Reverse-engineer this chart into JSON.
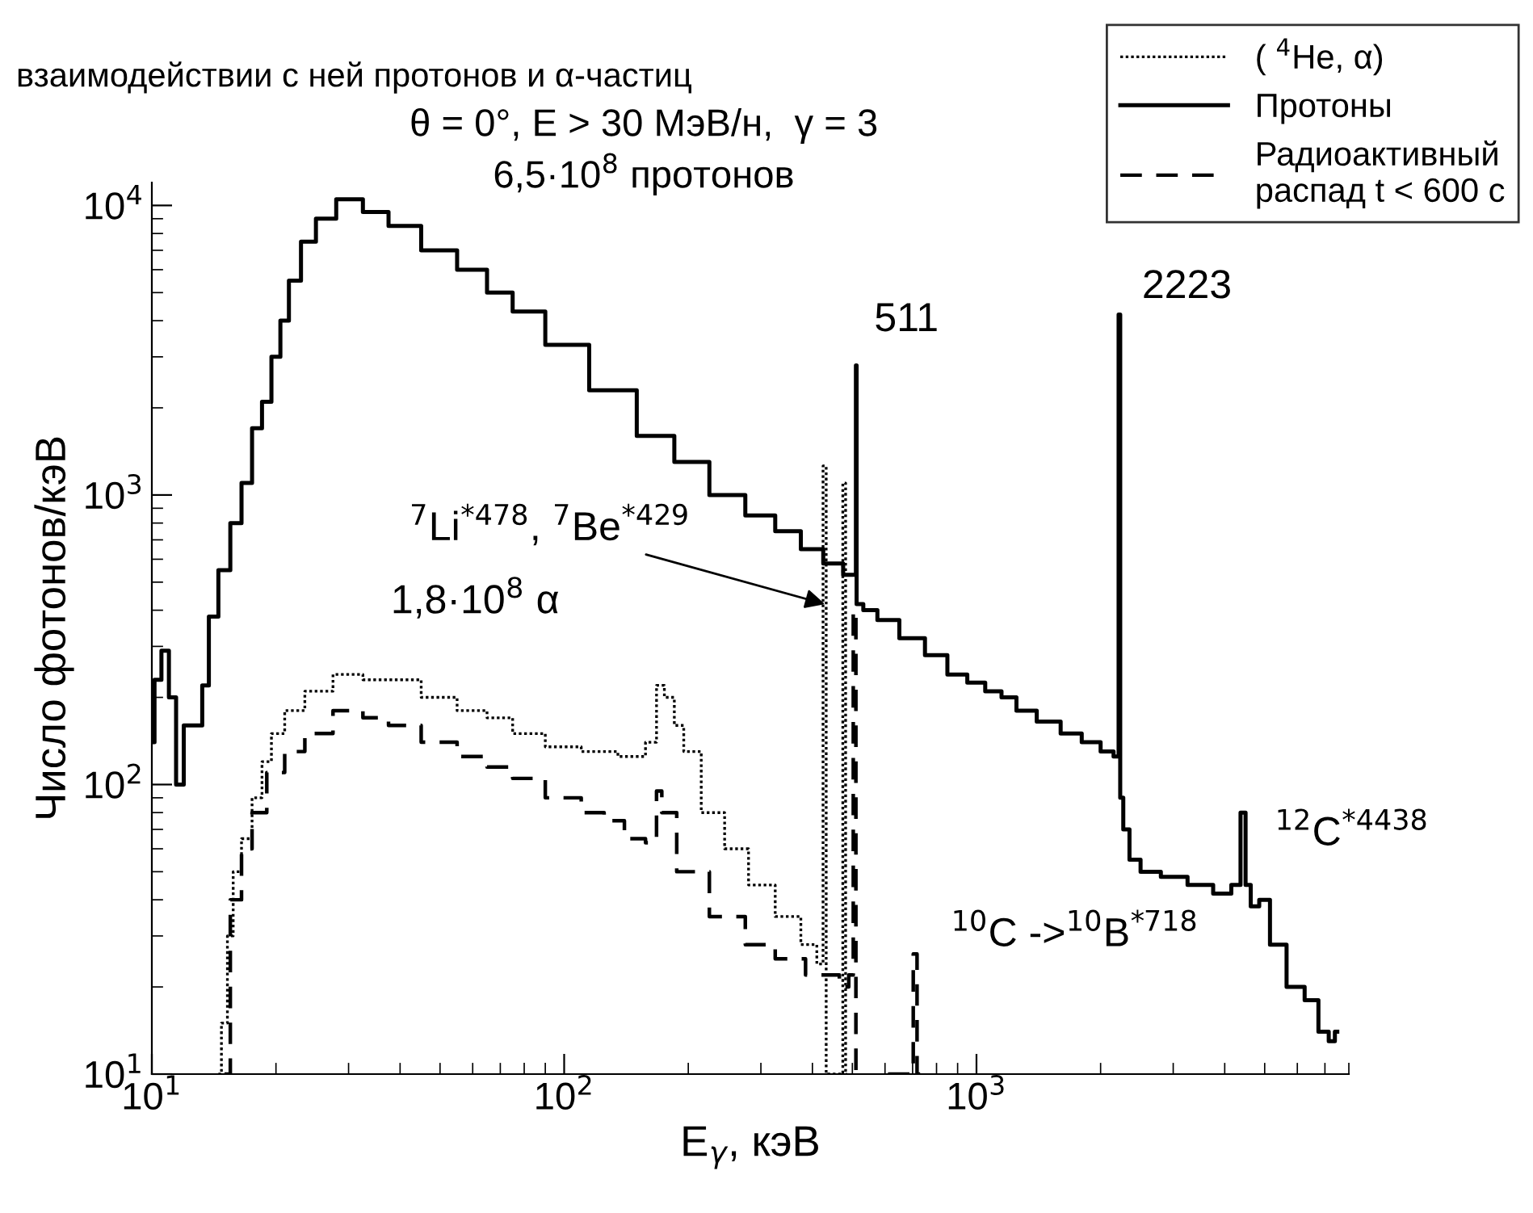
{
  "chart_data": {
    "type": "step",
    "title": "взаимодействии с ней протонов и α-частиц",
    "xlabel": "E$_{γ}$, кэВ",
    "ylabel": "Число фотонов/кэВ",
    "log": "xy",
    "xlim": [
      10,
      8000
    ],
    "ylim": [
      10,
      12000
    ],
    "xticks": [
      {
        "value": 10,
        "label": "10$^{1}$"
      },
      {
        "value": 100,
        "label": "10$^{2}$"
      },
      {
        "value": 1000,
        "label": "10$^{3}$"
      }
    ],
    "yticks": [
      {
        "value": 10,
        "label": "10$^{1}$"
      },
      {
        "value": 100,
        "label": "10$^{2}$"
      },
      {
        "value": 1000,
        "label": "10$^{3}$"
      },
      {
        "value": 10000,
        "label": "10$^{4}$"
      }
    ],
    "legend": "top right",
    "grid": false,
    "series": [
      {
        "name": "( $^{4}$He, α)",
        "color": "#000000",
        "line_style": "dotted",
        "x": [
          14.5,
          15,
          15.5,
          16,
          17,
          18,
          19,
          20,
          22,
          25,
          30,
          35,
          40,
          50,
          60,
          70,
          80,
          100,
          120,
          150,
          165,
          170,
          180,
          190,
          200,
          230,
          260,
          300,
          350,
          400,
          420,
          429,
          435,
          470,
          478,
          485
        ],
        "values": [
          10,
          15,
          30,
          50,
          65,
          90,
          120,
          150,
          180,
          210,
          240,
          230,
          230,
          200,
          180,
          170,
          150,
          135,
          130,
          125,
          140,
          220,
          200,
          160,
          130,
          80,
          60,
          45,
          35,
          28,
          24,
          1260,
          10,
          10,
          1100,
          10
        ]
      },
      {
        "name": "Протоны",
        "color": "#000000",
        "line_style": "solid",
        "x": [
          10,
          10.3,
          10.8,
          11.2,
          11.7,
          12.2,
          13,
          13.5,
          14,
          15,
          16,
          17,
          18,
          19,
          20,
          21,
          22,
          24,
          26,
          30,
          35,
          40,
          50,
          60,
          70,
          80,
          100,
          130,
          170,
          200,
          250,
          300,
          350,
          400,
          450,
          500,
          509,
          511,
          513,
          550,
          600,
          700,
          800,
          900,
          1000,
          1100,
          1200,
          1300,
          1500,
          1700,
          1900,
          2100,
          2200,
          2223,
          2240,
          2300,
          2400,
          2600,
          3000,
          3500,
          4000,
          4300,
          4438,
          4550,
          4700,
          5000,
          5300,
          6000,
          6500,
          7000,
          7300,
          7500
        ],
        "values": [
          140,
          230,
          290,
          200,
          100,
          160,
          160,
          220,
          380,
          550,
          800,
          1100,
          1700,
          2100,
          3000,
          4000,
          5500,
          7500,
          9000,
          10500,
          9500,
          8500,
          7000,
          6000,
          5000,
          4300,
          3300,
          2300,
          1600,
          1300,
          1000,
          850,
          750,
          650,
          580,
          530,
          530,
          2800,
          420,
          400,
          370,
          320,
          280,
          240,
          225,
          210,
          200,
          180,
          165,
          150,
          140,
          130,
          125,
          4200,
          90,
          70,
          55,
          50,
          48,
          45,
          42,
          45,
          80,
          45,
          38,
          40,
          28,
          20,
          18,
          14,
          13,
          14
        ]
      },
      {
        "name": "Радиоактивный\nраспад t < 600 с",
        "color": "#000000",
        "line_style": "dashed",
        "x": [
          15,
          16,
          17,
          18,
          20,
          22,
          25,
          30,
          35,
          40,
          50,
          60,
          70,
          80,
          100,
          120,
          130,
          150,
          165,
          170,
          175,
          200,
          250,
          300,
          350,
          420,
          450,
          480,
          500,
          505,
          515,
          520,
          700,
          705,
          730
        ],
        "values": [
          10,
          40,
          60,
          80,
          110,
          130,
          150,
          180,
          170,
          160,
          140,
          125,
          115,
          105,
          90,
          80,
          75,
          65,
          63,
          95,
          80,
          50,
          35,
          28,
          25,
          22,
          22,
          20,
          22,
          400,
          10,
          null,
          10,
          26,
          10
        ]
      }
    ],
    "annotations": [
      "θ = 0°, E > 30 МэВ/н,  γ = 3",
      "6,5·10$^{8}$ протонов",
      {
        "text": "$^{7}$Li$^{*478}$, $^{7}$Be$^{*429}$",
        "x": 429,
        "y": 420
      },
      "1,8·10$^{8}$ α",
      {
        "text": "511",
        "x": 511,
        "y": 2800
      },
      {
        "text": "2223",
        "x": 2223,
        "y": 4200
      },
      {
        "text": "$^{12}$C$^{*4438}$",
        "x": 4438,
        "y": 80
      },
      {
        "text": "$^{10}$C ->$^{10}$B$^{*718}$",
        "x": 718,
        "y": 26
      }
    ]
  }
}
